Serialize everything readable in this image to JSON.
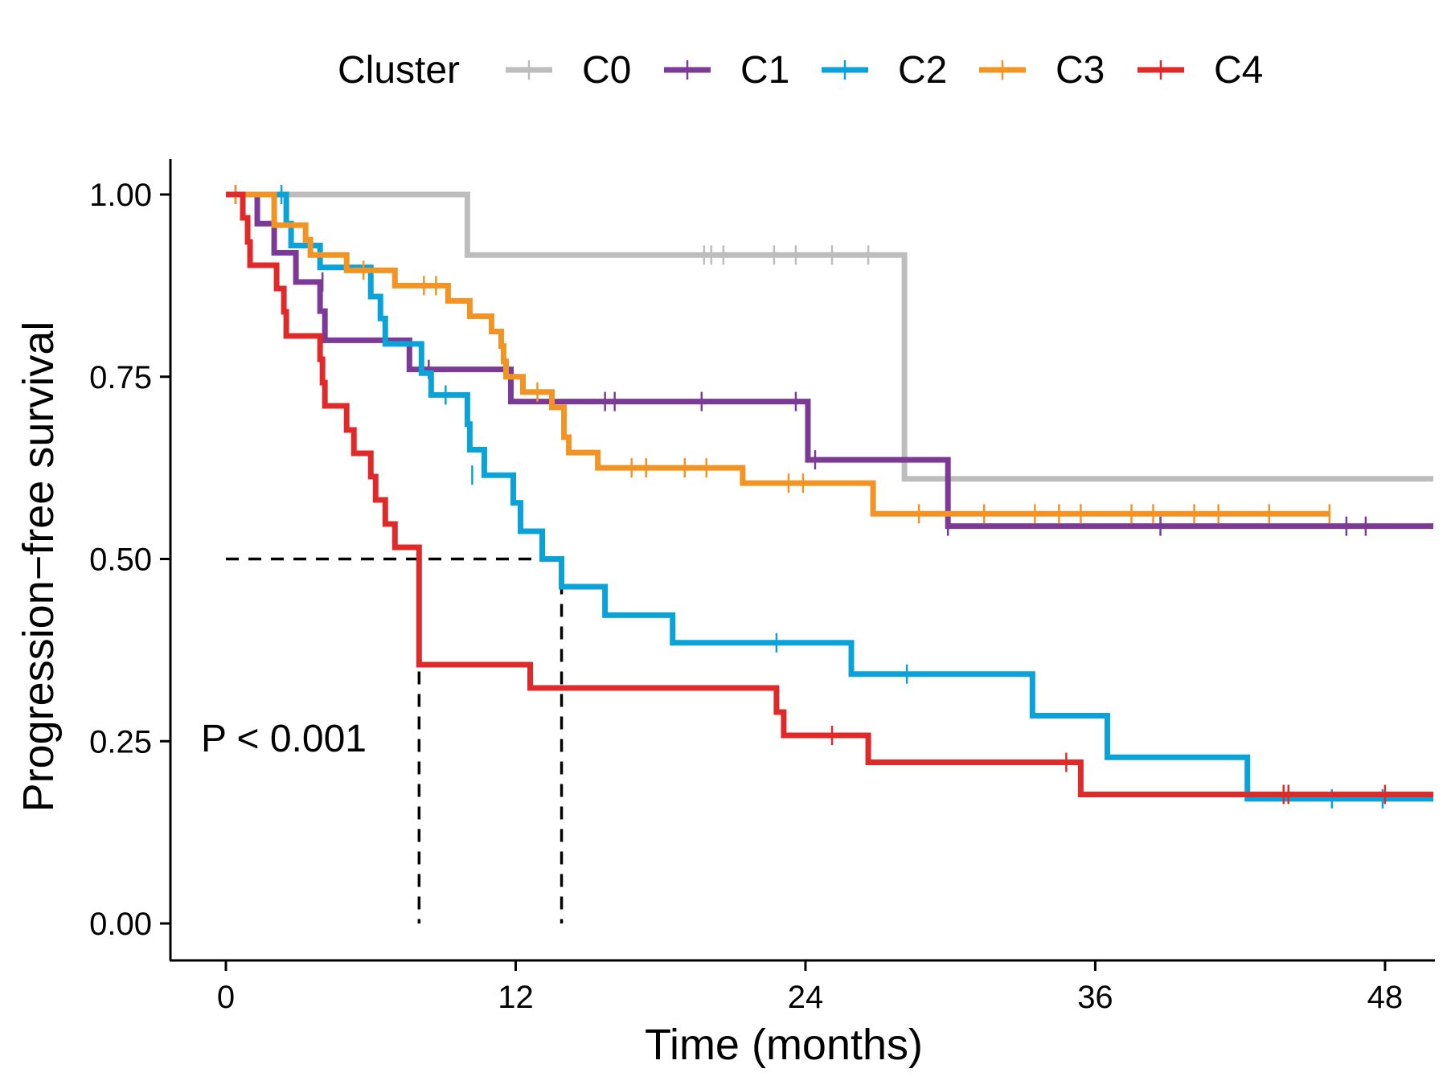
{
  "chart_data": {
    "type": "line",
    "subtype": "kaplan-meier",
    "xlabel": "Time (months)",
    "ylabel": "Progression−free survival",
    "xlim": [
      -2.4,
      50
    ],
    "ylim": [
      -0.05,
      1.05
    ],
    "xticks": [
      0,
      12,
      24,
      36,
      48
    ],
    "yticks": [
      0,
      0.25,
      0.5,
      0.75,
      1
    ],
    "ytick_labels": [
      "0.00",
      "0.25",
      "0.50",
      "0.75",
      "1.00"
    ],
    "legend": {
      "title": "Cluster",
      "position": "top"
    },
    "annotation": "P < 0.001",
    "median_lines": [
      {
        "x": 8.0,
        "y": 0.5
      },
      {
        "x": 13.9,
        "y": 0.5
      }
    ],
    "series": [
      {
        "name": "C0",
        "color": "#bdbdbd",
        "steps": [
          [
            0,
            1.0
          ],
          [
            10,
            0.917
          ],
          [
            28.1,
            0.61
          ],
          [
            50,
            0.61
          ]
        ],
        "censored": [
          [
            19.8,
            0.917
          ],
          [
            20.1,
            0.917
          ],
          [
            20.6,
            0.917
          ],
          [
            22.7,
            0.917
          ],
          [
            23.6,
            0.917
          ],
          [
            25.1,
            0.917
          ],
          [
            26.6,
            0.917
          ]
        ]
      },
      {
        "name": "C1",
        "color": "#7b3a96",
        "steps": [
          [
            0,
            1.0
          ],
          [
            1.3,
            0.96
          ],
          [
            2.0,
            0.92
          ],
          [
            2.9,
            0.88
          ],
          [
            3.9,
            0.84
          ],
          [
            4.1,
            0.8
          ],
          [
            7.6,
            0.76
          ],
          [
            11.8,
            0.716
          ],
          [
            24.1,
            0.636
          ],
          [
            29.9,
            0.545
          ],
          [
            50,
            0.545
          ]
        ],
        "censored": [
          [
            0.4,
            1.0
          ],
          [
            4.0,
            0.88
          ],
          [
            8.4,
            0.76
          ],
          [
            15.7,
            0.716
          ],
          [
            16.1,
            0.716
          ],
          [
            19.7,
            0.716
          ],
          [
            23.6,
            0.716
          ],
          [
            24.4,
            0.636
          ],
          [
            29.9,
            0.545
          ],
          [
            38.7,
            0.545
          ],
          [
            46.4,
            0.545
          ],
          [
            47.2,
            0.545
          ]
        ]
      },
      {
        "name": "C2",
        "color": "#0aa3d9",
        "steps": [
          [
            0,
            1.0
          ],
          [
            2.5,
            0.96
          ],
          [
            2.7,
            0.93
          ],
          [
            3.9,
            0.9
          ],
          [
            6.0,
            0.86
          ],
          [
            6.4,
            0.83
          ],
          [
            6.6,
            0.795
          ],
          [
            8.1,
            0.755
          ],
          [
            8.5,
            0.725
          ],
          [
            10.0,
            0.685
          ],
          [
            10.1,
            0.65
          ],
          [
            10.7,
            0.615
          ],
          [
            11.9,
            0.577
          ],
          [
            12.2,
            0.538
          ],
          [
            13.1,
            0.5
          ],
          [
            13.9,
            0.462
          ],
          [
            15.7,
            0.423
          ],
          [
            18.5,
            0.385
          ],
          [
            25.9,
            0.342
          ],
          [
            33.4,
            0.285
          ],
          [
            36.5,
            0.228
          ],
          [
            42.3,
            0.171
          ],
          [
            50,
            0.171
          ]
        ],
        "censored": [
          [
            2.3,
            1.0
          ],
          [
            9.1,
            0.725
          ],
          [
            10.2,
            0.615
          ],
          [
            22.8,
            0.385
          ],
          [
            28.2,
            0.342
          ],
          [
            45.8,
            0.171
          ],
          [
            47.9,
            0.171
          ]
        ]
      },
      {
        "name": "C3",
        "color": "#f29423",
        "steps": [
          [
            0,
            1.0
          ],
          [
            2.0,
            0.958
          ],
          [
            3.3,
            0.938
          ],
          [
            3.5,
            0.917
          ],
          [
            5.0,
            0.896
          ],
          [
            7.0,
            0.875
          ],
          [
            8.9,
            0.875
          ],
          [
            9.2,
            0.854
          ],
          [
            10.1,
            0.833
          ],
          [
            11.0,
            0.812
          ],
          [
            11.4,
            0.792
          ],
          [
            11.5,
            0.771
          ],
          [
            11.6,
            0.75
          ],
          [
            12.3,
            0.729
          ],
          [
            13.5,
            0.708
          ],
          [
            14.0,
            0.667
          ],
          [
            14.2,
            0.646
          ],
          [
            15.4,
            0.625
          ],
          [
            21.4,
            0.604
          ],
          [
            26.8,
            0.562
          ],
          [
            45.7,
            0.562
          ]
        ],
        "censored": [
          [
            0.4,
            1.0
          ],
          [
            5.7,
            0.896
          ],
          [
            8.2,
            0.875
          ],
          [
            8.7,
            0.875
          ],
          [
            12.9,
            0.729
          ],
          [
            16.8,
            0.625
          ],
          [
            17.4,
            0.625
          ],
          [
            19.0,
            0.625
          ],
          [
            19.9,
            0.625
          ],
          [
            23.3,
            0.604
          ],
          [
            23.9,
            0.604
          ],
          [
            28.7,
            0.562
          ],
          [
            31.4,
            0.562
          ],
          [
            33.5,
            0.562
          ],
          [
            34.5,
            0.562
          ],
          [
            35.4,
            0.562
          ],
          [
            37.5,
            0.562
          ],
          [
            38.4,
            0.562
          ],
          [
            40.1,
            0.562
          ],
          [
            41.1,
            0.562
          ],
          [
            43.2,
            0.562
          ],
          [
            45.7,
            0.562
          ]
        ]
      },
      {
        "name": "C4",
        "color": "#e02a2a",
        "steps": [
          [
            0,
            1.0
          ],
          [
            0.7,
            0.968
          ],
          [
            0.9,
            0.935
          ],
          [
            1.0,
            0.903
          ],
          [
            2.1,
            0.871
          ],
          [
            2.4,
            0.839
          ],
          [
            2.5,
            0.806
          ],
          [
            3.9,
            0.774
          ],
          [
            4.0,
            0.742
          ],
          [
            4.1,
            0.71
          ],
          [
            5.0,
            0.677
          ],
          [
            5.3,
            0.645
          ],
          [
            6.0,
            0.613
          ],
          [
            6.2,
            0.581
          ],
          [
            6.6,
            0.548
          ],
          [
            7.0,
            0.516
          ],
          [
            8.0,
            0.355
          ],
          [
            12.6,
            0.323
          ],
          [
            22.8,
            0.29
          ],
          [
            23.1,
            0.258
          ],
          [
            26.6,
            0.221
          ],
          [
            35.4,
            0.177
          ],
          [
            50,
            0.177
          ]
        ],
        "censored": [
          [
            25.1,
            0.258
          ],
          [
            34.8,
            0.221
          ],
          [
            43.8,
            0.177
          ],
          [
            44.0,
            0.177
          ],
          [
            48.0,
            0.177
          ]
        ]
      }
    ]
  }
}
